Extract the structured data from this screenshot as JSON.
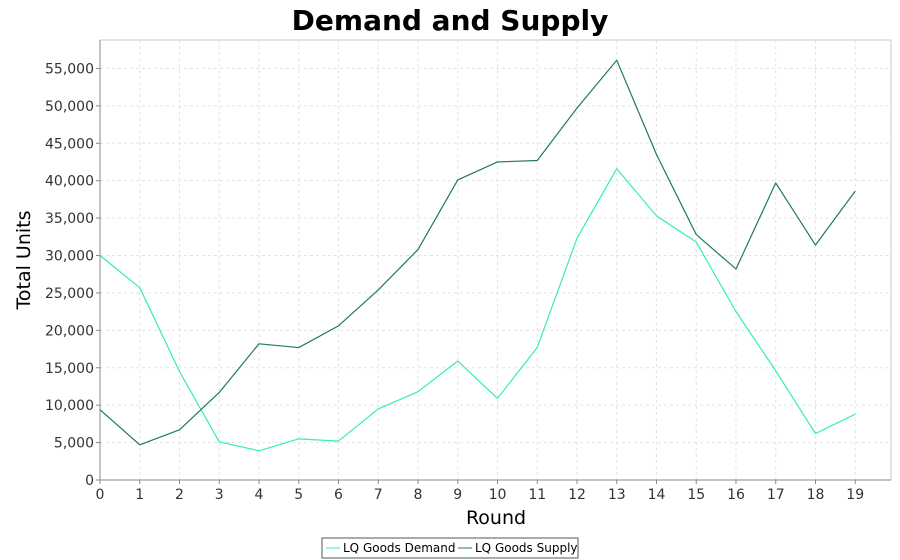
{
  "chart_data": {
    "type": "line",
    "title": "Demand and Supply",
    "xlabel": "Round",
    "ylabel": "Total Units",
    "x": [
      0,
      1,
      2,
      3,
      4,
      5,
      6,
      7,
      8,
      9,
      10,
      11,
      12,
      13,
      14,
      15,
      16,
      17,
      18,
      19
    ],
    "xlim": [
      0,
      19.9
    ],
    "ylim": [
      0,
      58800
    ],
    "y_ticks": [
      0,
      5000,
      10000,
      15000,
      20000,
      25000,
      30000,
      35000,
      40000,
      45000,
      50000,
      55000
    ],
    "y_tick_labels": [
      "0",
      "5,000",
      "10,000",
      "15,000",
      "20,000",
      "25,000",
      "30,000",
      "35,000",
      "40,000",
      "45,000",
      "50,000",
      "55,000"
    ],
    "x_tick_labels": [
      "0",
      "1",
      "2",
      "3",
      "4",
      "5",
      "6",
      "7",
      "8",
      "9",
      "10",
      "11",
      "12",
      "13",
      "14",
      "15",
      "16",
      "17",
      "18",
      "19"
    ],
    "grid": true,
    "legend_position": "bottom-center",
    "series": [
      {
        "name": "LQ Goods Demand",
        "color": "#33f0a8",
        "values": [
          30000,
          25700,
          14500,
          5100,
          3900,
          5500,
          5200,
          9500,
          11800,
          15900,
          10900,
          17700,
          32300,
          41600,
          35300,
          31800,
          22500,
          14600,
          6200,
          8800
        ]
      },
      {
        "name": "LQ Goods Supply",
        "color": "#1f7a5c",
        "values": [
          9400,
          4700,
          6700,
          11700,
          18200,
          17700,
          20600,
          25400,
          30800,
          40100,
          42500,
          42700,
          49700,
          56100,
          43500,
          32800,
          28200,
          39700,
          31400,
          38600
        ]
      }
    ]
  }
}
